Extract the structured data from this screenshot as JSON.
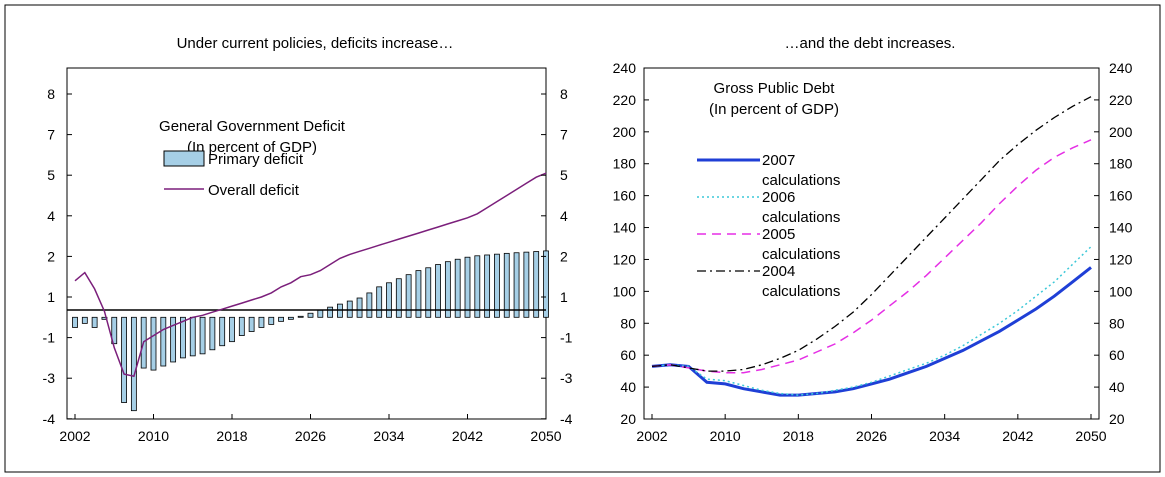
{
  "chart_data": [
    {
      "type": "bar+line",
      "title": "Under current policies, deficits increase…",
      "inner_title": [
        "General Government Deficit",
        "(In percent of GDP)"
      ],
      "xlabel": "",
      "ylabel": "",
      "x_ticks": [
        "2002",
        "2010",
        "2018",
        "2026",
        "2034",
        "2042",
        "2050"
      ],
      "y_ticks": [
        "8",
        "7",
        "5",
        "4",
        "2",
        "1",
        "-1",
        "-3",
        "-4"
      ],
      "xlim": [
        2002,
        2050
      ],
      "ylim": [
        -4,
        8
      ],
      "grid": false,
      "legend_position": "upper-left",
      "x": [
        2002,
        2003,
        2004,
        2005,
        2006,
        2007,
        2008,
        2009,
        2010,
        2011,
        2012,
        2013,
        2014,
        2015,
        2016,
        2017,
        2018,
        2019,
        2020,
        2021,
        2022,
        2023,
        2024,
        2025,
        2026,
        2027,
        2028,
        2029,
        2030,
        2031,
        2032,
        2033,
        2034,
        2035,
        2036,
        2037,
        2038,
        2039,
        2040,
        2041,
        2042,
        2043,
        2044,
        2045,
        2046,
        2047,
        2048,
        2049,
        2050
      ],
      "series": [
        {
          "name": "Primary deficit",
          "type": "bar",
          "color": "#a6cfe6",
          "values": [
            -0.5,
            -0.3,
            -0.5,
            -0.1,
            -1.3,
            -3.6,
            -3.8,
            -2.5,
            -2.6,
            -2.4,
            -2.2,
            -2.0,
            -1.9,
            -1.8,
            -1.6,
            -1.4,
            -1.2,
            -0.9,
            -0.7,
            -0.5,
            -0.35,
            -0.2,
            -0.1,
            0.05,
            0.2,
            0.35,
            0.5,
            0.65,
            0.8,
            0.95,
            1.1,
            1.25,
            1.35,
            1.45,
            1.55,
            1.65,
            1.72,
            1.8,
            1.87,
            1.93,
            1.98,
            2.03,
            2.07,
            2.11,
            2.15,
            2.18,
            2.21,
            2.24,
            2.27
          ]
        },
        {
          "name": "Overall deficit",
          "type": "line",
          "color": "#7b1f7b",
          "values": [
            1.4,
            1.6,
            1.2,
            0.3,
            -1.5,
            -2.8,
            -2.9,
            -1.2,
            -0.9,
            -0.6,
            -0.4,
            -0.2,
            0.0,
            0.1,
            0.25,
            0.4,
            0.55,
            0.7,
            0.85,
            1.0,
            1.1,
            1.25,
            1.35,
            1.5,
            1.55,
            1.65,
            1.8,
            1.95,
            2.1,
            2.25,
            2.4,
            2.55,
            2.7,
            2.85,
            3.0,
            3.15,
            3.3,
            3.45,
            3.6,
            3.75,
            3.9,
            4.05,
            4.2,
            4.35,
            4.5,
            4.65,
            4.8,
            4.95,
            5.1
          ]
        }
      ],
      "y_axis_note": "tick labels as printed: 8, 7, 5, 4, 2, 1, -1, -3, -4 (evenly spaced)"
    },
    {
      "type": "line",
      "title": "…and the debt increases.",
      "inner_title": [
        "Gross Public Debt",
        "(In percent of GDP)"
      ],
      "xlabel": "",
      "ylabel": "",
      "x_ticks": [
        "2002",
        "2010",
        "2018",
        "2026",
        "2034",
        "2042",
        "2050"
      ],
      "y_ticks": [
        "240",
        "220",
        "200",
        "180",
        "160",
        "140",
        "120",
        "100",
        "80",
        "60",
        "40",
        "20"
      ],
      "xlim": [
        2002,
        2050
      ],
      "ylim": [
        20,
        240
      ],
      "grid": false,
      "legend_position": "upper-left",
      "series": [
        {
          "name": "2007 calculations",
          "color": "#1f3fd6",
          "style": "solid",
          "x": [
            2002,
            2004,
            2006,
            2008,
            2010,
            2012,
            2014,
            2016,
            2018,
            2020,
            2022,
            2024,
            2026,
            2028,
            2030,
            2032,
            2034,
            2036,
            2038,
            2040,
            2042,
            2044,
            2046,
            2048,
            2050
          ],
          "values": [
            53,
            54,
            53,
            43,
            42,
            39,
            37,
            35,
            35,
            36,
            37,
            39,
            42,
            45,
            49,
            53,
            58,
            63,
            69,
            75,
            82,
            89,
            97,
            106,
            115
          ]
        },
        {
          "name": "2006 calculations",
          "color": "#3cc8d8",
          "style": "dotted",
          "x": [
            2002,
            2004,
            2006,
            2008,
            2010,
            2012,
            2014,
            2016,
            2018,
            2020,
            2022,
            2024,
            2026,
            2028,
            2030,
            2032,
            2034,
            2036,
            2038,
            2040,
            2042,
            2044,
            2046,
            2048,
            2050
          ],
          "values": [
            53,
            54,
            53,
            45,
            44,
            41,
            38,
            36,
            35,
            36,
            38,
            40,
            43,
            47,
            51,
            55,
            60,
            66,
            73,
            80,
            88,
            97,
            106,
            117,
            128
          ]
        },
        {
          "name": "2005 calculations",
          "color": "#e52fe5",
          "style": "dashed",
          "x": [
            2002,
            2004,
            2006,
            2008,
            2010,
            2012,
            2014,
            2016,
            2018,
            2020,
            2022,
            2024,
            2026,
            2028,
            2030,
            2032,
            2034,
            2036,
            2038,
            2040,
            2042,
            2044,
            2046,
            2048,
            2050
          ],
          "values": [
            53,
            54,
            52,
            50,
            49,
            49,
            51,
            54,
            57,
            62,
            67,
            74,
            82,
            91,
            100,
            110,
            121,
            132,
            143,
            155,
            166,
            176,
            184,
            190,
            195
          ]
        },
        {
          "name": "2004 calculations",
          "color": "#000000",
          "style": "dash-dot",
          "x": [
            2002,
            2004,
            2006,
            2008,
            2010,
            2012,
            2014,
            2016,
            2018,
            2020,
            2022,
            2024,
            2026,
            2028,
            2030,
            2032,
            2034,
            2036,
            2038,
            2040,
            2042,
            2044,
            2046,
            2048,
            2050
          ],
          "values": [
            53,
            54,
            52,
            50,
            50,
            51,
            54,
            58,
            63,
            70,
            78,
            87,
            98,
            110,
            122,
            134,
            146,
            158,
            170,
            182,
            192,
            201,
            209,
            216,
            222
          ]
        }
      ]
    }
  ]
}
